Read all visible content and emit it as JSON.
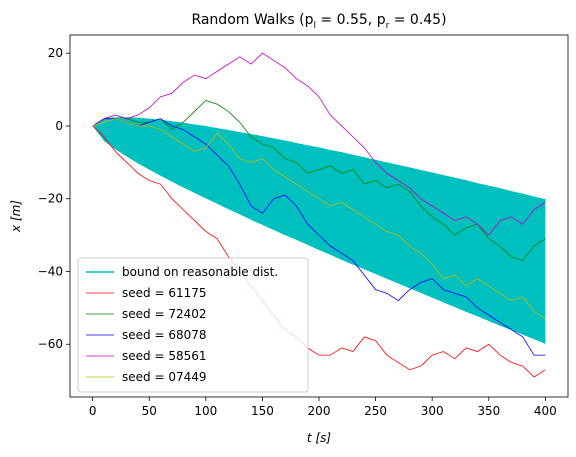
{
  "chart_data": {
    "type": "line",
    "title": "Random Walks (p_l = 0.55, p_r = 0.45)",
    "xlabel": "t [s]",
    "ylabel": "x [m]",
    "xlim": [
      -20,
      420
    ],
    "ylim": [
      -74.5,
      25
    ],
    "xticks": [
      0,
      50,
      100,
      150,
      200,
      250,
      300,
      350,
      400
    ],
    "yticks": [
      {
        "value": -60,
        "label": "−60"
      },
      {
        "value": -40,
        "label": "−40"
      },
      {
        "value": -20,
        "label": "−20"
      },
      0,
      20
    ],
    "legend": "lower left",
    "x": [
      0,
      10,
      20,
      30,
      40,
      50,
      60,
      70,
      80,
      90,
      100,
      110,
      120,
      130,
      140,
      150,
      160,
      170,
      180,
      190,
      200,
      210,
      220,
      230,
      240,
      250,
      260,
      270,
      280,
      290,
      300,
      310,
      320,
      330,
      340,
      350,
      360,
      370,
      380,
      390,
      400
    ],
    "band": {
      "name": "bound on reasonable dist.",
      "color": "#00bfbf",
      "upper": [
        0,
        2.1,
        2.4,
        2.4,
        2.3,
        2.0,
        1.7,
        1.3,
        0.9,
        0.4,
        0,
        -0.6,
        -1.1,
        -1.7,
        -2.2,
        -2.8,
        -3.4,
        -4.0,
        -4.7,
        -5.3,
        -5.9,
        -6.6,
        -7.2,
        -7.9,
        -8.6,
        -9.3,
        -10.0,
        -10.7,
        -11.4,
        -12.1,
        -12.8,
        -13.5,
        -14.2,
        -14.9,
        -15.7,
        -16.4,
        -17.1,
        -17.9,
        -18.6,
        -19.4,
        -20.1
      ],
      "lower": [
        0,
        -4.1,
        -6.4,
        -8.4,
        -10.3,
        -12.0,
        -13.7,
        -15.3,
        -16.9,
        -18.4,
        -19.9,
        -21.4,
        -22.9,
        -24.3,
        -25.8,
        -27.2,
        -28.6,
        -30.0,
        -31.3,
        -32.7,
        -34.1,
        -35.4,
        -36.8,
        -38.1,
        -39.4,
        -40.7,
        -42.0,
        -43.3,
        -44.6,
        -45.9,
        -47.2,
        -48.5,
        -49.8,
        -51.1,
        -52.3,
        -53.6,
        -54.9,
        -56.1,
        -57.4,
        -58.6,
        -59.9
      ]
    },
    "series": [
      {
        "name": "seed = 61175",
        "color": "#ff0000",
        "values": [
          0,
          -3,
          -7,
          -10,
          -13,
          -15,
          -16,
          -20,
          -23,
          -26,
          -29,
          -31,
          -36,
          -40,
          -44,
          -48,
          -52,
          -56,
          -58,
          -61,
          -63,
          -63,
          -61,
          -62,
          -58,
          -59,
          -63,
          -65,
          -67,
          -66,
          -63,
          -62,
          -64,
          -61,
          -62,
          -60,
          -63,
          -65,
          -66,
          -69,
          -67
        ]
      },
      {
        "name": "seed = 72402",
        "color": "#008000",
        "values": [
          0,
          2,
          3,
          2,
          1,
          1,
          2,
          -1,
          1,
          4,
          7,
          6,
          4,
          1,
          -3,
          -5,
          -6,
          -9,
          -10,
          -13,
          -12,
          -11,
          -13,
          -12,
          -16,
          -15,
          -17,
          -16,
          -18,
          -22,
          -25,
          -27,
          -30,
          -28,
          -27,
          -31,
          -33,
          -36,
          -37,
          -33,
          -31
        ]
      },
      {
        "name": "seed = 68078",
        "color": "#0000ff",
        "values": [
          0,
          2,
          2,
          1,
          0,
          1,
          2,
          0,
          -1,
          -3,
          -5,
          -8,
          -11,
          -16,
          -22,
          -24,
          -20,
          -19,
          -22,
          -27,
          -30,
          -33,
          -35,
          -37,
          -41,
          -45,
          -46,
          -48,
          -45,
          -43,
          -42,
          -45,
          -46,
          -47,
          -50,
          -52,
          -54,
          -56,
          -58,
          -63,
          -63
        ]
      },
      {
        "name": "seed = 58561",
        "color": "#bf00bf",
        "values": [
          0,
          2,
          3,
          2,
          3,
          5,
          8,
          9,
          12,
          14,
          13,
          15,
          17,
          19,
          17,
          20,
          18,
          16,
          13,
          11,
          8,
          3,
          0,
          -3,
          -6,
          -10,
          -13,
          -15,
          -17,
          -20,
          -22,
          -24,
          -26,
          -25,
          -27,
          -30,
          -26,
          -25,
          -27,
          -23,
          -21
        ]
      },
      {
        "name": "seed = 07449",
        "color": "#bfbf00",
        "values": [
          0,
          1,
          2,
          1,
          0,
          0,
          -1,
          -3,
          -5,
          -7,
          -6,
          -2,
          -5,
          -9,
          -10,
          -9,
          -12,
          -14,
          -16,
          -18,
          -20,
          -22,
          -21,
          -23,
          -25,
          -27,
          -29,
          -30,
          -33,
          -35,
          -38,
          -42,
          -41,
          -44,
          -42,
          -44,
          -46,
          -48,
          -47,
          -51,
          -53
        ]
      }
    ]
  }
}
